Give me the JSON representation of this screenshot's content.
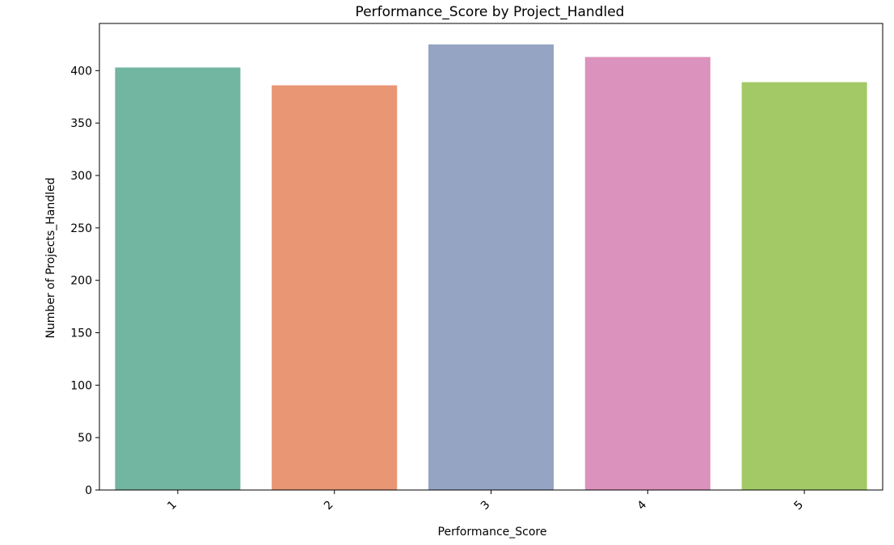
{
  "chart_data": {
    "type": "bar",
    "title": "Performance_Score by Project_Handled",
    "xlabel": "Performance_Score",
    "ylabel": "Number of Projects_Handled",
    "categories": [
      "1",
      "2",
      "3",
      "4",
      "5"
    ],
    "values": [
      403,
      386,
      425,
      413,
      389
    ],
    "colors": [
      "#72b5a0",
      "#e89674",
      "#95a4c2",
      "#db92bd",
      "#a2c966"
    ],
    "ylim": [
      0,
      445
    ],
    "yticks": [
      0,
      50,
      100,
      150,
      200,
      250,
      300,
      350,
      400
    ],
    "grid": false,
    "legend": "none"
  }
}
